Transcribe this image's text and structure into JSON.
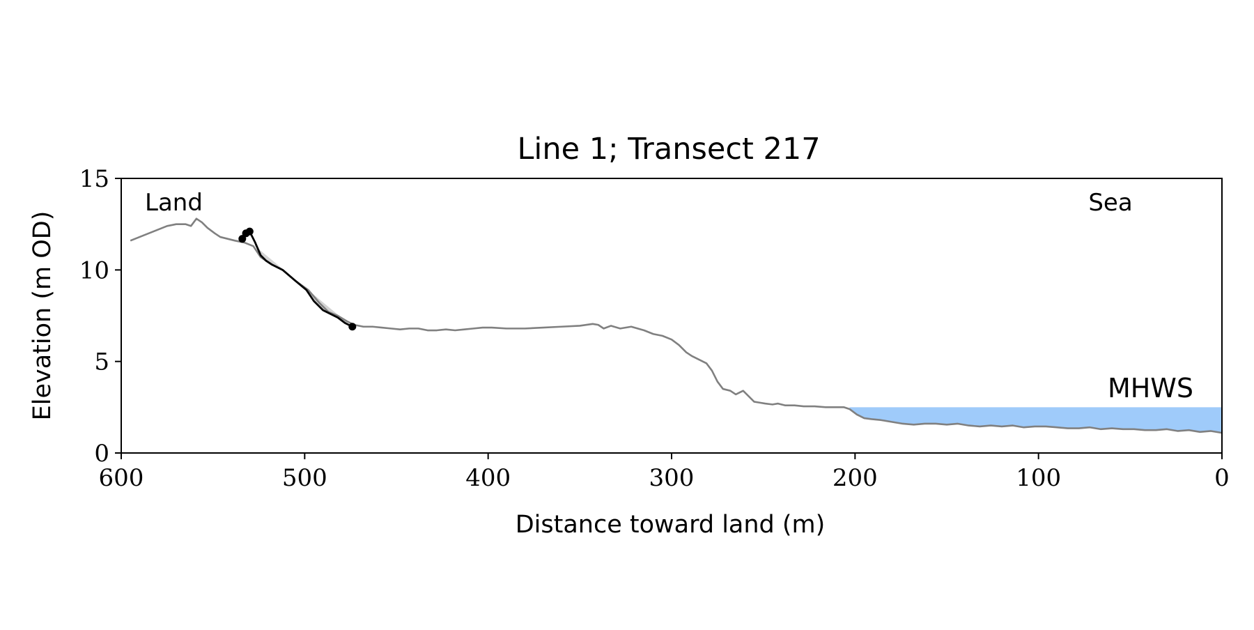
{
  "chart_data": {
    "type": "line",
    "title": "Line 1; Transect 217",
    "xlabel": "Distance toward land (m)",
    "ylabel": "Elevation (m OD)",
    "xlim": [
      600,
      0
    ],
    "ylim": [
      0,
      15
    ],
    "x_ticks": [
      600,
      500,
      400,
      300,
      200,
      100,
      0
    ],
    "y_ticks": [
      0,
      5,
      10,
      15
    ],
    "grid": false,
    "annotations": {
      "land": "Land",
      "sea": "Sea",
      "mhws": "MHWS"
    },
    "mhws": {
      "elevation": 2.5,
      "x_start": 203,
      "x_end": 0
    },
    "colors": {
      "profile": "#808080",
      "cliff": "#000000",
      "sea_fill": "#9fcbfa",
      "mhws_label": "#6b9bc8",
      "shade": "#d3d3d3"
    },
    "series": [
      {
        "role": "profile",
        "x": [
          595,
          590,
          585,
          580,
          575,
          570,
          565,
          562,
          559,
          556,
          553,
          549,
          546,
          542,
          538,
          533,
          528,
          524,
          518,
          512,
          505,
          498,
          492,
          487,
          482,
          477,
          473,
          468,
          463,
          458,
          453,
          448,
          443,
          438,
          433,
          428,
          423,
          418,
          413,
          408,
          403,
          398,
          390,
          380,
          370,
          360,
          350,
          343,
          340,
          337,
          333,
          328,
          322,
          315,
          310,
          305,
          300,
          296,
          292,
          289,
          285,
          281,
          278,
          275,
          272,
          268,
          265,
          261,
          258,
          255,
          252,
          249,
          245,
          242,
          238,
          233,
          228,
          222,
          216,
          210,
          206,
          203,
          199,
          195,
          191,
          186,
          180,
          174,
          168,
          162,
          156,
          150,
          144,
          138,
          132,
          126,
          120,
          114,
          108,
          102,
          96,
          90,
          84,
          78,
          72,
          66,
          60,
          54,
          48,
          42,
          36,
          30,
          24,
          18,
          12,
          6,
          0
        ],
        "y": [
          11.6,
          11.8,
          12.0,
          12.2,
          12.4,
          12.5,
          12.5,
          12.4,
          12.8,
          12.6,
          12.3,
          12.0,
          11.8,
          11.7,
          11.6,
          11.5,
          11.3,
          10.7,
          10.3,
          10.0,
          9.4,
          8.9,
          8.2,
          7.7,
          7.5,
          7.2,
          7.0,
          6.9,
          6.9,
          6.85,
          6.8,
          6.75,
          6.8,
          6.8,
          6.7,
          6.7,
          6.75,
          6.7,
          6.75,
          6.8,
          6.85,
          6.85,
          6.8,
          6.8,
          6.85,
          6.9,
          6.95,
          7.05,
          7.0,
          6.8,
          6.95,
          6.8,
          6.9,
          6.7,
          6.5,
          6.4,
          6.2,
          5.9,
          5.5,
          5.3,
          5.1,
          4.9,
          4.5,
          3.9,
          3.5,
          3.4,
          3.2,
          3.4,
          3.1,
          2.8,
          2.75,
          2.7,
          2.65,
          2.7,
          2.6,
          2.6,
          2.55,
          2.55,
          2.5,
          2.5,
          2.5,
          2.4,
          2.1,
          1.9,
          1.85,
          1.8,
          1.7,
          1.6,
          1.55,
          1.6,
          1.6,
          1.55,
          1.6,
          1.5,
          1.45,
          1.5,
          1.45,
          1.5,
          1.4,
          1.45,
          1.45,
          1.4,
          1.35,
          1.35,
          1.4,
          1.3,
          1.35,
          1.3,
          1.3,
          1.25,
          1.25,
          1.3,
          1.2,
          1.25,
          1.15,
          1.2,
          1.1
        ]
      },
      {
        "role": "cliff",
        "x": [
          534,
          532,
          530,
          527,
          524,
          521,
          518,
          512,
          505,
          499,
          495,
          490,
          486,
          482,
          478,
          474
        ],
        "y": [
          11.7,
          12.0,
          12.1,
          11.5,
          10.8,
          10.5,
          10.3,
          10.0,
          9.4,
          8.9,
          8.3,
          7.8,
          7.6,
          7.4,
          7.1,
          6.9
        ]
      },
      {
        "role": "cliff-points",
        "x": [
          534,
          532,
          530,
          474
        ],
        "y": [
          11.7,
          12.0,
          12.1,
          6.9
        ]
      },
      {
        "role": "cliff-shade",
        "x": [
          527,
          474
        ],
        "y": [
          11.3,
          6.9
        ]
      }
    ]
  }
}
